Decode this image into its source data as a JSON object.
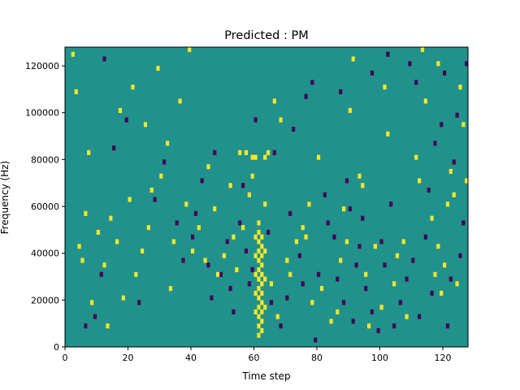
{
  "chart_data": {
    "type": "heatmap",
    "title": "Predicted : PM",
    "xlabel": "Time step",
    "ylabel": "Frequency (Hz)",
    "xlim": [
      0,
      128
    ],
    "ylim": [
      0,
      128000
    ],
    "xticks": [
      0,
      20,
      40,
      60,
      80,
      100,
      120
    ],
    "yticks": [
      0,
      20000,
      40000,
      60000,
      80000,
      100000,
      120000
    ],
    "xtick_labels": [
      "0",
      "20",
      "40",
      "60",
      "80",
      "100",
      "120"
    ],
    "ytick_labels": [
      "0",
      "20000",
      "40000",
      "60000",
      "80000",
      "100000",
      "120000"
    ],
    "colormap": "viridis",
    "levels": {
      "low": -1,
      "mid": 0,
      "high": 1
    },
    "colors": {
      "low": "#440154",
      "mid": "#21918c",
      "high": "#fde725"
    },
    "grid": false,
    "legend": "none",
    "cell_size": {
      "time": 1,
      "frequency": 2000
    },
    "high_cells": [
      [
        61,
        4000
      ],
      [
        61,
        8000
      ],
      [
        61,
        12000
      ],
      [
        61,
        16000
      ],
      [
        61,
        20000
      ],
      [
        61,
        24000
      ],
      [
        61,
        28000
      ],
      [
        61,
        32000
      ],
      [
        61,
        36000
      ],
      [
        61,
        40000
      ],
      [
        61,
        44000
      ],
      [
        61,
        48000
      ],
      [
        61,
        52000
      ],
      [
        62,
        6000
      ],
      [
        62,
        10000
      ],
      [
        62,
        14000
      ],
      [
        62,
        18000
      ],
      [
        62,
        22000
      ],
      [
        62,
        26000
      ],
      [
        62,
        30000
      ],
      [
        62,
        34000
      ],
      [
        62,
        38000
      ],
      [
        62,
        42000
      ],
      [
        62,
        46000
      ],
      [
        60,
        14000
      ],
      [
        60,
        22000
      ],
      [
        60,
        30000
      ],
      [
        60,
        38000
      ],
      [
        60,
        46000
      ],
      [
        60,
        80000
      ],
      [
        63,
        16000
      ],
      [
        63,
        28000
      ],
      [
        63,
        40000
      ],
      [
        63,
        60000
      ],
      [
        63,
        80000
      ],
      [
        55,
        82000
      ],
      [
        57,
        82000
      ],
      [
        59,
        80000
      ],
      [
        58,
        64000
      ],
      [
        56,
        50000
      ],
      [
        54,
        32000
      ],
      [
        50,
        38000
      ],
      [
        48,
        30000
      ],
      [
        44,
        36000
      ],
      [
        42,
        50000
      ],
      [
        40,
        40000
      ],
      [
        38,
        60000
      ],
      [
        34,
        44000
      ],
      [
        33,
        24000
      ],
      [
        30,
        72000
      ],
      [
        27,
        66000
      ],
      [
        26,
        50000
      ],
      [
        24,
        40000
      ],
      [
        22,
        30000
      ],
      [
        20,
        62000
      ],
      [
        18,
        20000
      ],
      [
        16,
        44000
      ],
      [
        14,
        54000
      ],
      [
        12,
        34000
      ],
      [
        10,
        48000
      ],
      [
        8,
        18000
      ],
      [
        6,
        56000
      ],
      [
        5,
        36000
      ],
      [
        4,
        42000
      ],
      [
        3,
        108000
      ],
      [
        2,
        124000
      ],
      [
        7,
        82000
      ],
      [
        13,
        8000
      ],
      [
        17,
        100000
      ],
      [
        21,
        110000
      ],
      [
        25,
        94000
      ],
      [
        29,
        118000
      ],
      [
        32,
        86000
      ],
      [
        36,
        104000
      ],
      [
        39,
        126000
      ],
      [
        45,
        76000
      ],
      [
        47,
        58000
      ],
      [
        52,
        68000
      ],
      [
        53,
        46000
      ],
      [
        65,
        26000
      ],
      [
        67,
        12000
      ],
      [
        70,
        36000
      ],
      [
        73,
        44000
      ],
      [
        75,
        50000
      ],
      [
        77,
        60000
      ],
      [
        78,
        18000
      ],
      [
        81,
        24000
      ],
      [
        84,
        10000
      ],
      [
        86,
        14000
      ],
      [
        87,
        36000
      ],
      [
        89,
        44000
      ],
      [
        90,
        100000
      ],
      [
        91,
        122000
      ],
      [
        93,
        72000
      ],
      [
        95,
        30000
      ],
      [
        96,
        8000
      ],
      [
        98,
        42000
      ],
      [
        100,
        16000
      ],
      [
        102,
        90000
      ],
      [
        104,
        26000
      ],
      [
        105,
        38000
      ],
      [
        107,
        44000
      ],
      [
        108,
        12000
      ],
      [
        111,
        80000
      ],
      [
        112,
        70000
      ],
      [
        114,
        104000
      ],
      [
        116,
        54000
      ],
      [
        117,
        30000
      ],
      [
        118,
        42000
      ],
      [
        119,
        22000
      ],
      [
        120,
        34000
      ],
      [
        121,
        60000
      ],
      [
        122,
        74000
      ],
      [
        123,
        64000
      ],
      [
        124,
        26000
      ],
      [
        125,
        110000
      ],
      [
        126,
        94000
      ],
      [
        127,
        70000
      ],
      [
        113,
        126000
      ],
      [
        118,
        120000
      ],
      [
        101,
        110000
      ],
      [
        94,
        68000
      ],
      [
        88,
        58000
      ],
      [
        80,
        80000
      ],
      [
        76,
        46000
      ],
      [
        71,
        30000
      ],
      [
        68,
        96000
      ],
      [
        66,
        104000
      ],
      [
        64,
        82000
      ],
      [
        59,
        72000
      ]
    ],
    "low_cells": [
      [
        6,
        8000
      ],
      [
        9,
        12000
      ],
      [
        11,
        30000
      ],
      [
        12,
        122000
      ],
      [
        15,
        84000
      ],
      [
        19,
        96000
      ],
      [
        23,
        18000
      ],
      [
        28,
        62000
      ],
      [
        31,
        78000
      ],
      [
        35,
        52000
      ],
      [
        37,
        36000
      ],
      [
        40,
        46000
      ],
      [
        41,
        56000
      ],
      [
        43,
        70000
      ],
      [
        45,
        34000
      ],
      [
        46,
        20000
      ],
      [
        47,
        82000
      ],
      [
        49,
        30000
      ],
      [
        51,
        44000
      ],
      [
        52,
        24000
      ],
      [
        53,
        14000
      ],
      [
        55,
        52000
      ],
      [
        57,
        40000
      ],
      [
        58,
        26000
      ],
      [
        59,
        32000
      ],
      [
        64,
        48000
      ],
      [
        65,
        18000
      ],
      [
        66,
        82000
      ],
      [
        68,
        8000
      ],
      [
        70,
        20000
      ],
      [
        71,
        56000
      ],
      [
        72,
        92000
      ],
      [
        74,
        38000
      ],
      [
        75,
        26000
      ],
      [
        76,
        106000
      ],
      [
        79,
        2000
      ],
      [
        80,
        30000
      ],
      [
        82,
        64000
      ],
      [
        83,
        52000
      ],
      [
        85,
        46000
      ],
      [
        86,
        28000
      ],
      [
        88,
        18000
      ],
      [
        89,
        70000
      ],
      [
        90,
        58000
      ],
      [
        91,
        10000
      ],
      [
        92,
        34000
      ],
      [
        93,
        42000
      ],
      [
        94,
        54000
      ],
      [
        95,
        24000
      ],
      [
        97,
        14000
      ],
      [
        99,
        6000
      ],
      [
        100,
        44000
      ],
      [
        101,
        34000
      ],
      [
        103,
        60000
      ],
      [
        104,
        8000
      ],
      [
        106,
        18000
      ],
      [
        108,
        28000
      ],
      [
        110,
        36000
      ],
      [
        112,
        12000
      ],
      [
        114,
        46000
      ],
      [
        115,
        66000
      ],
      [
        116,
        22000
      ],
      [
        117,
        86000
      ],
      [
        119,
        94000
      ],
      [
        120,
        116000
      ],
      [
        121,
        8000
      ],
      [
        122,
        28000
      ],
      [
        124,
        98000
      ],
      [
        126,
        52000
      ],
      [
        127,
        120000
      ],
      [
        125,
        38000
      ],
      [
        123,
        78000
      ],
      [
        111,
        112000
      ],
      [
        109,
        120000
      ],
      [
        102,
        124000
      ],
      [
        97,
        116000
      ],
      [
        87,
        108000
      ],
      [
        78,
        112000
      ],
      [
        60,
        96000
      ],
      [
        56,
        68000
      ]
    ]
  }
}
